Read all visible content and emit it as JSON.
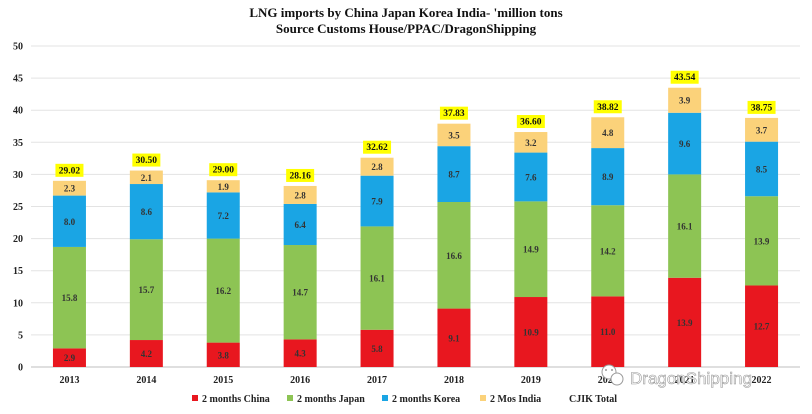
{
  "chart_data": {
    "type": "bar",
    "stacked": true,
    "title": "LNG imports by China Japan Korea India- 'million tons",
    "subtitle": "Source Customs House/PPAC/DragonShipping",
    "xlabel": "",
    "ylabel": "",
    "ylim": [
      0,
      50
    ],
    "yticks": [
      0,
      5,
      10,
      15,
      20,
      25,
      30,
      35,
      40,
      45,
      50
    ],
    "grid": true,
    "legend_position": "bottom",
    "categories": [
      "2013",
      "2014",
      "2015",
      "2016",
      "2017",
      "2018",
      "2019",
      "2020",
      "2021",
      "2022"
    ],
    "series": [
      {
        "name": "2 months China",
        "color": "#e8171f",
        "values": [
          2.9,
          4.2,
          3.8,
          4.3,
          5.8,
          9.1,
          10.9,
          11.0,
          13.9,
          12.7
        ],
        "labels": [
          "2.9",
          "4.2",
          "3.8",
          "4.3",
          "5.8",
          "9.1",
          "10.9",
          "11.0",
          "13.9",
          "12.7"
        ]
      },
      {
        "name": "2 months Japan",
        "color": "#8dc454",
        "values": [
          15.8,
          15.7,
          16.2,
          14.7,
          16.1,
          16.6,
          14.9,
          14.2,
          16.1,
          13.9
        ],
        "labels": [
          "15.8",
          "15.7",
          "16.2",
          "14.7",
          "16.1",
          "16.6",
          "14.9",
          "14.2",
          "16.1",
          "13.9"
        ]
      },
      {
        "name": "2 months Korea",
        "color": "#1aa5e4",
        "values": [
          8.0,
          8.6,
          7.2,
          6.4,
          7.9,
          8.7,
          7.6,
          8.9,
          9.6,
          8.5
        ],
        "labels": [
          "8.0",
          "8.6",
          "7.2",
          "6.4",
          "7.9",
          "8.7",
          "7.6",
          "8.9",
          "9.6",
          "8.5"
        ]
      },
      {
        "name": "2 Mos India",
        "color": "#fbd27a",
        "values": [
          2.3,
          2.1,
          1.9,
          2.8,
          2.8,
          3.5,
          3.2,
          4.8,
          3.9,
          3.7
        ],
        "labels": [
          "2.3",
          "2.1",
          "1.9",
          "2.8",
          "2.8",
          "3.5",
          "3.2",
          "4.8",
          "3.9",
          "3.7"
        ]
      }
    ],
    "totals": {
      "name": "CJIK Total",
      "values": [
        29.02,
        30.5,
        29.0,
        28.16,
        32.62,
        37.83,
        36.6,
        38.82,
        43.54,
        38.75
      ],
      "labels": [
        "29.02",
        "30.50",
        "29.00",
        "28.16",
        "32.62",
        "37.83",
        "36.60",
        "38.82",
        "43.54",
        "38.75"
      ],
      "highlight_color": "#ffff00"
    }
  },
  "watermark": {
    "text": "DragonShipping",
    "icon": "wechat-icon"
  }
}
